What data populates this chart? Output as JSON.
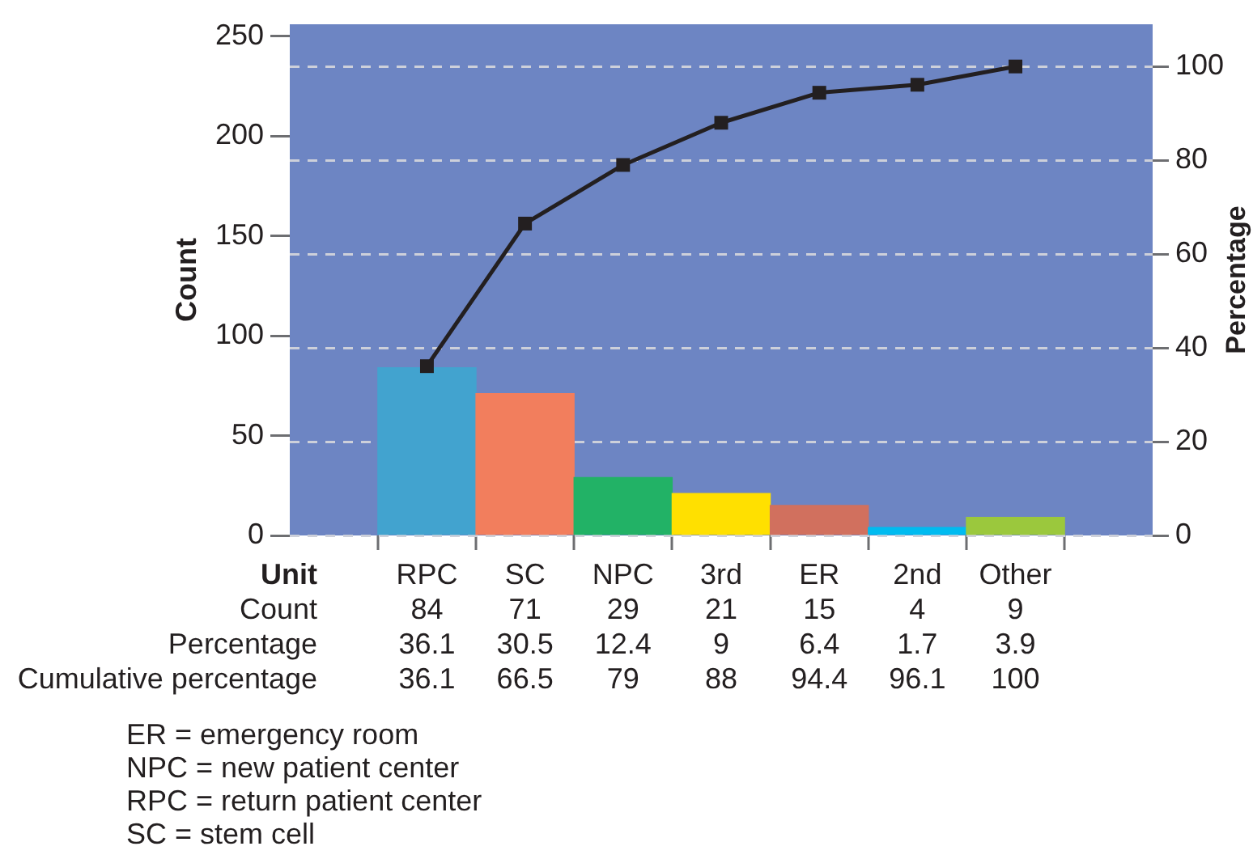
{
  "chart_data": {
    "type": "bar",
    "xlabel": "Unit",
    "ylabel": "Count",
    "y2label": "Percentage",
    "categories": [
      "RPC",
      "SC",
      "NPC",
      "3rd",
      "ER",
      "2nd",
      "Other"
    ],
    "series": [
      {
        "name": "Count",
        "colors": [
          "#42a3cf",
          "#f27e5d",
          "#22b266",
          "#ffe000",
          "#d1705e",
          "#00bbf0",
          "#9bc83d"
        ],
        "values": [
          84,
          71,
          29,
          21,
          15,
          4,
          9
        ]
      },
      {
        "type": "line",
        "axis": "y2",
        "color": "#231f20",
        "values": [
          36.1,
          66.5,
          79,
          88,
          94.4,
          96.1,
          100
        ]
      }
    ],
    "ylim": [
      0,
      256
    ],
    "yticks": [
      0,
      50,
      100,
      150,
      200,
      250
    ],
    "y2lim": [
      0,
      109
    ],
    "y2ticks": [
      0,
      20,
      40,
      60,
      80,
      100
    ],
    "grid": "y",
    "marker": "square",
    "data_labels": true,
    "annotations": [
      "Percentage",
      "36.1",
      "30.5",
      "12.4",
      "9",
      "6.4",
      "1.7",
      "3.9",
      "Cumulative percentage",
      "ER = emergency room",
      "NPC = new patient center",
      "RPC = return patient center",
      "SC = stem cell"
    ]
  }
}
